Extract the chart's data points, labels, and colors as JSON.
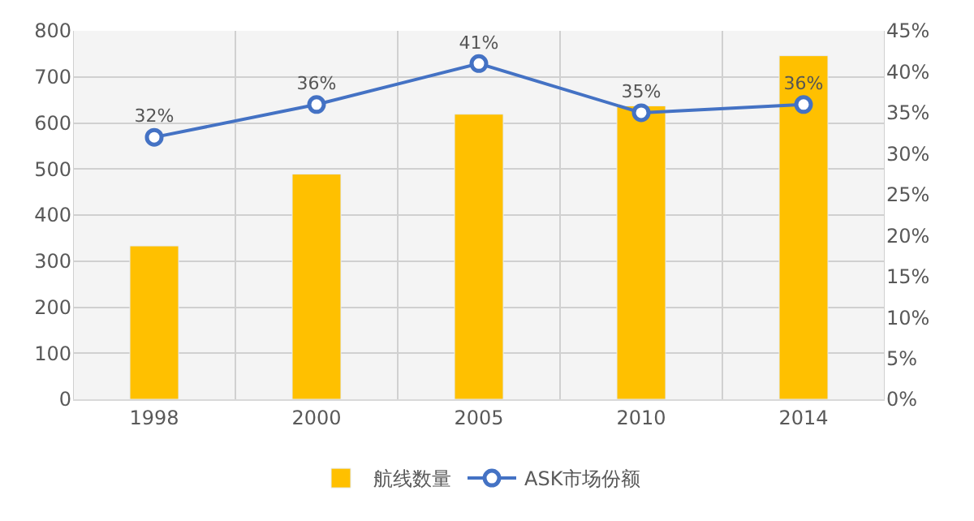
{
  "chart_data": {
    "type": "bar",
    "categories": [
      "1998",
      "2000",
      "2005",
      "2010",
      "2014"
    ],
    "series": [
      {
        "name": "航线数量",
        "color": "#ffc000",
        "values": [
          333,
          489,
          619,
          637,
          746
        ]
      },
      {
        "name": "ASK市场份额",
        "type": "line",
        "axis": "y2",
        "color": "#4472c4",
        "values": [
          32,
          36,
          41,
          35,
          36
        ],
        "value_labels": [
          "32%",
          "36%",
          "41%",
          "35%",
          "36%"
        ],
        "marker": "circle"
      }
    ],
    "ylim": [
      0,
      800
    ],
    "yticks": [
      0,
      100,
      200,
      300,
      400,
      500,
      600,
      700,
      800
    ],
    "y2lim": [
      0,
      45
    ],
    "y2ticks": [
      {
        "value": 0,
        "label": "0%"
      },
      {
        "value": 5,
        "label": "5%"
      },
      {
        "value": 10,
        "label": "10%"
      },
      {
        "value": 15,
        "label": "15%"
      },
      {
        "value": 20,
        "label": "20%"
      },
      {
        "value": 25,
        "label": "25%"
      },
      {
        "value": 30,
        "label": "30%"
      },
      {
        "value": 35,
        "label": "35%"
      },
      {
        "value": 40,
        "label": "40%"
      },
      {
        "value": 45,
        "label": "45%"
      }
    ],
    "grid": true,
    "legend": "bottom"
  }
}
